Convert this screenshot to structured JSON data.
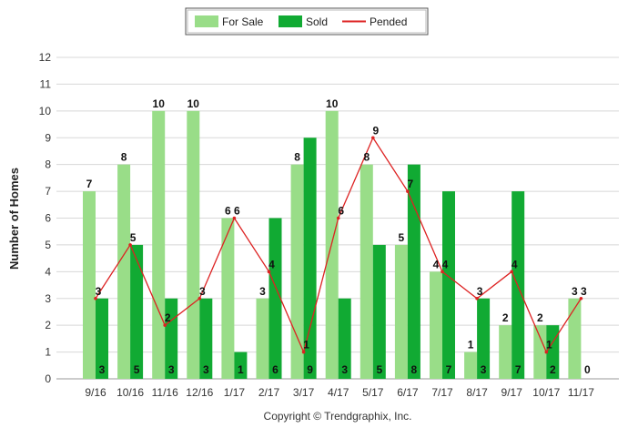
{
  "chart_data": {
    "type": "bar",
    "categories": [
      "9/16",
      "10/16",
      "11/16",
      "12/16",
      "1/17",
      "2/17",
      "3/17",
      "4/17",
      "5/17",
      "6/17",
      "7/17",
      "8/17",
      "9/17",
      "10/17",
      "11/17"
    ],
    "series": [
      {
        "name": "For Sale",
        "type": "bar",
        "color": "#99dd88",
        "values": [
          7,
          8,
          10,
          10,
          6,
          3,
          8,
          10,
          8,
          5,
          4,
          1,
          2,
          2,
          3
        ]
      },
      {
        "name": "Sold",
        "type": "bar",
        "color": "#11aa33",
        "values": [
          3,
          5,
          3,
          3,
          1,
          6,
          9,
          3,
          5,
          8,
          7,
          3,
          7,
          2,
          0
        ]
      },
      {
        "name": "Pended",
        "type": "line",
        "color": "#dd2222",
        "values": [
          3,
          5,
          2,
          3,
          6,
          4,
          1,
          6,
          9,
          7,
          4,
          3,
          4,
          1,
          3
        ]
      }
    ],
    "xlabel": "",
    "ylabel": "Number of Homes",
    "ylim": [
      0,
      12
    ],
    "yticks": [
      0,
      1,
      2,
      3,
      4,
      5,
      6,
      7,
      8,
      9,
      10,
      11,
      12
    ],
    "grid": true,
    "legend_position": "top-center"
  },
  "copyright": "Copyright © Trendgraphix, Inc."
}
